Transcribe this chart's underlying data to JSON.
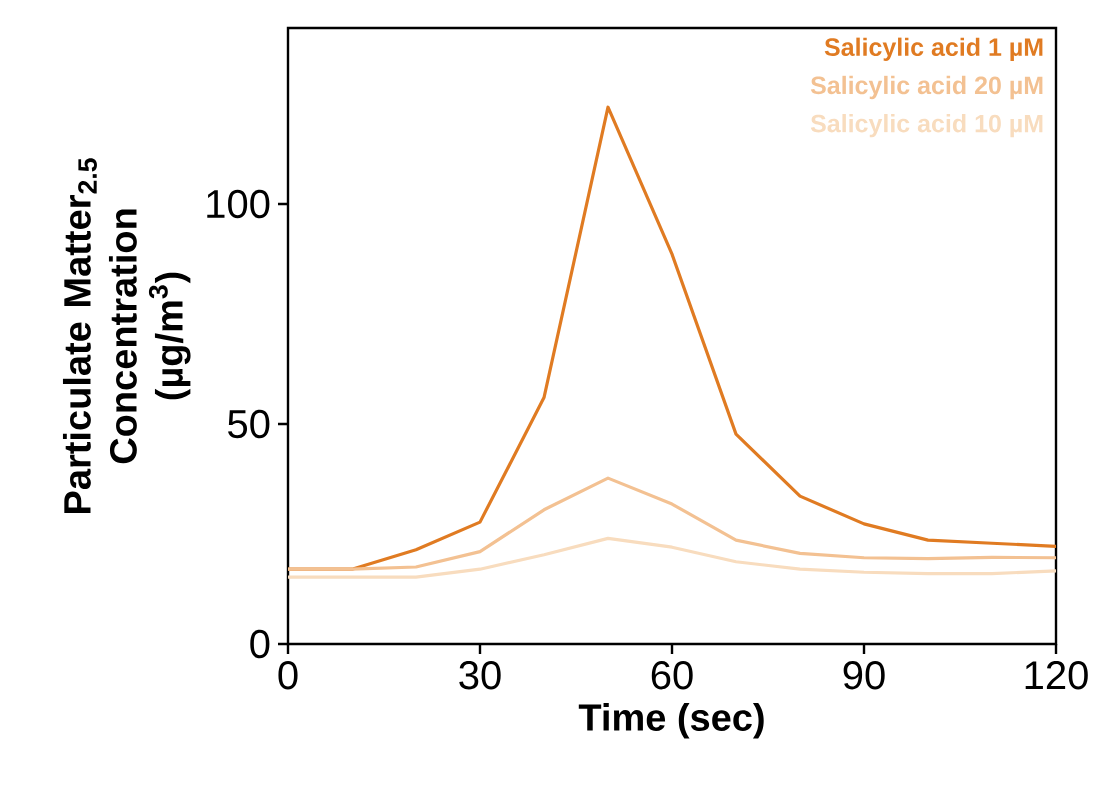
{
  "chart_data": {
    "type": "line",
    "xlabel": "Time (sec)",
    "ylabel": "Particulate Matter$_{2.5}$ Concentration (µg/m$^{3}$)",
    "x": [
      0,
      10,
      20,
      30,
      40,
      50,
      60,
      70,
      80,
      90,
      100,
      110,
      120
    ],
    "series": [
      {
        "name": "Salicylic acid 1 µM",
        "color": "#e07b22",
        "values": [
          17,
          17,
          21.4,
          27.7,
          56,
          122,
          88.6,
          47.7,
          33.6,
          27.3,
          23.6,
          22.9,
          22.2
        ]
      },
      {
        "name": "Salicylic acid 20 µM",
        "color": "#f3c192",
        "values": [
          17,
          17,
          17.5,
          21,
          30.5,
          37.7,
          31.8,
          23.6,
          20.6,
          19.6,
          19.4,
          19.7,
          19.6
        ]
      },
      {
        "name": "Salicylic acid 10 µM",
        "color": "#f8dcbe",
        "values": [
          15.2,
          15.2,
          15.2,
          17,
          20.3,
          24,
          22,
          18.7,
          17,
          16.3,
          16,
          16,
          16.6
        ]
      }
    ],
    "xlim": [
      0,
      120
    ],
    "ylim": [
      0,
      140
    ],
    "xticks": [
      0,
      30,
      60,
      90,
      120
    ],
    "yticks": [
      0,
      50,
      100
    ],
    "grid": false,
    "legend": "top right",
    "marker": "none",
    "line_style": "solid"
  }
}
